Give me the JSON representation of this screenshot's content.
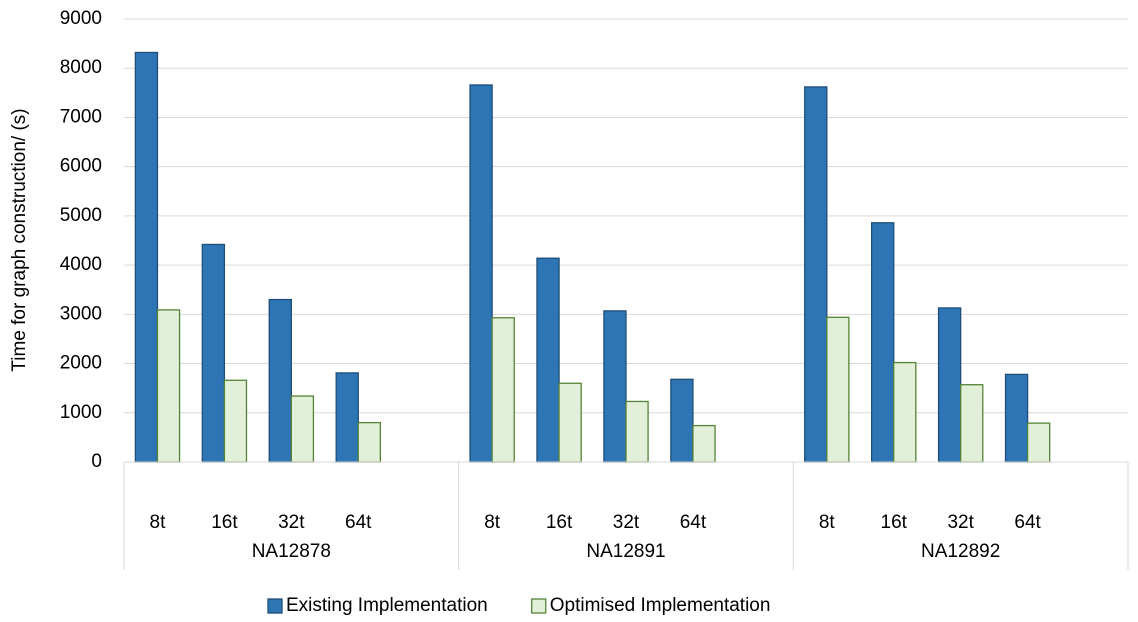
{
  "chart_data": {
    "type": "bar",
    "y_label": "Time for graph construction/ (s)",
    "categories": [
      "8t",
      "16t",
      "32t",
      "64t",
      "8t",
      "16t",
      "32t",
      "64t",
      "8t",
      "16t",
      "32t",
      "64t"
    ],
    "groups": [
      "NA12878",
      "NA12891",
      "NA12892"
    ],
    "series": [
      {
        "name": "Existing Implementation",
        "color": "#2e75b6",
        "edge": "#1f4e79",
        "values": [
          8320,
          4420,
          3300,
          1810,
          7660,
          4140,
          3070,
          1680,
          7620,
          4860,
          3130,
          1780
        ]
      },
      {
        "name": "Optimised Implementation",
        "color": "#e2f0d9",
        "edge": "#548235",
        "values": [
          3090,
          1660,
          1340,
          800,
          2930,
          1600,
          1230,
          740,
          2940,
          2020,
          1570,
          790
        ]
      }
    ],
    "ylim": [
      0,
      9000
    ],
    "yticks": [
      0,
      1000,
      2000,
      3000,
      4000,
      5000,
      6000,
      7000,
      8000,
      9000
    ],
    "grid": true,
    "legend": "bottom"
  }
}
